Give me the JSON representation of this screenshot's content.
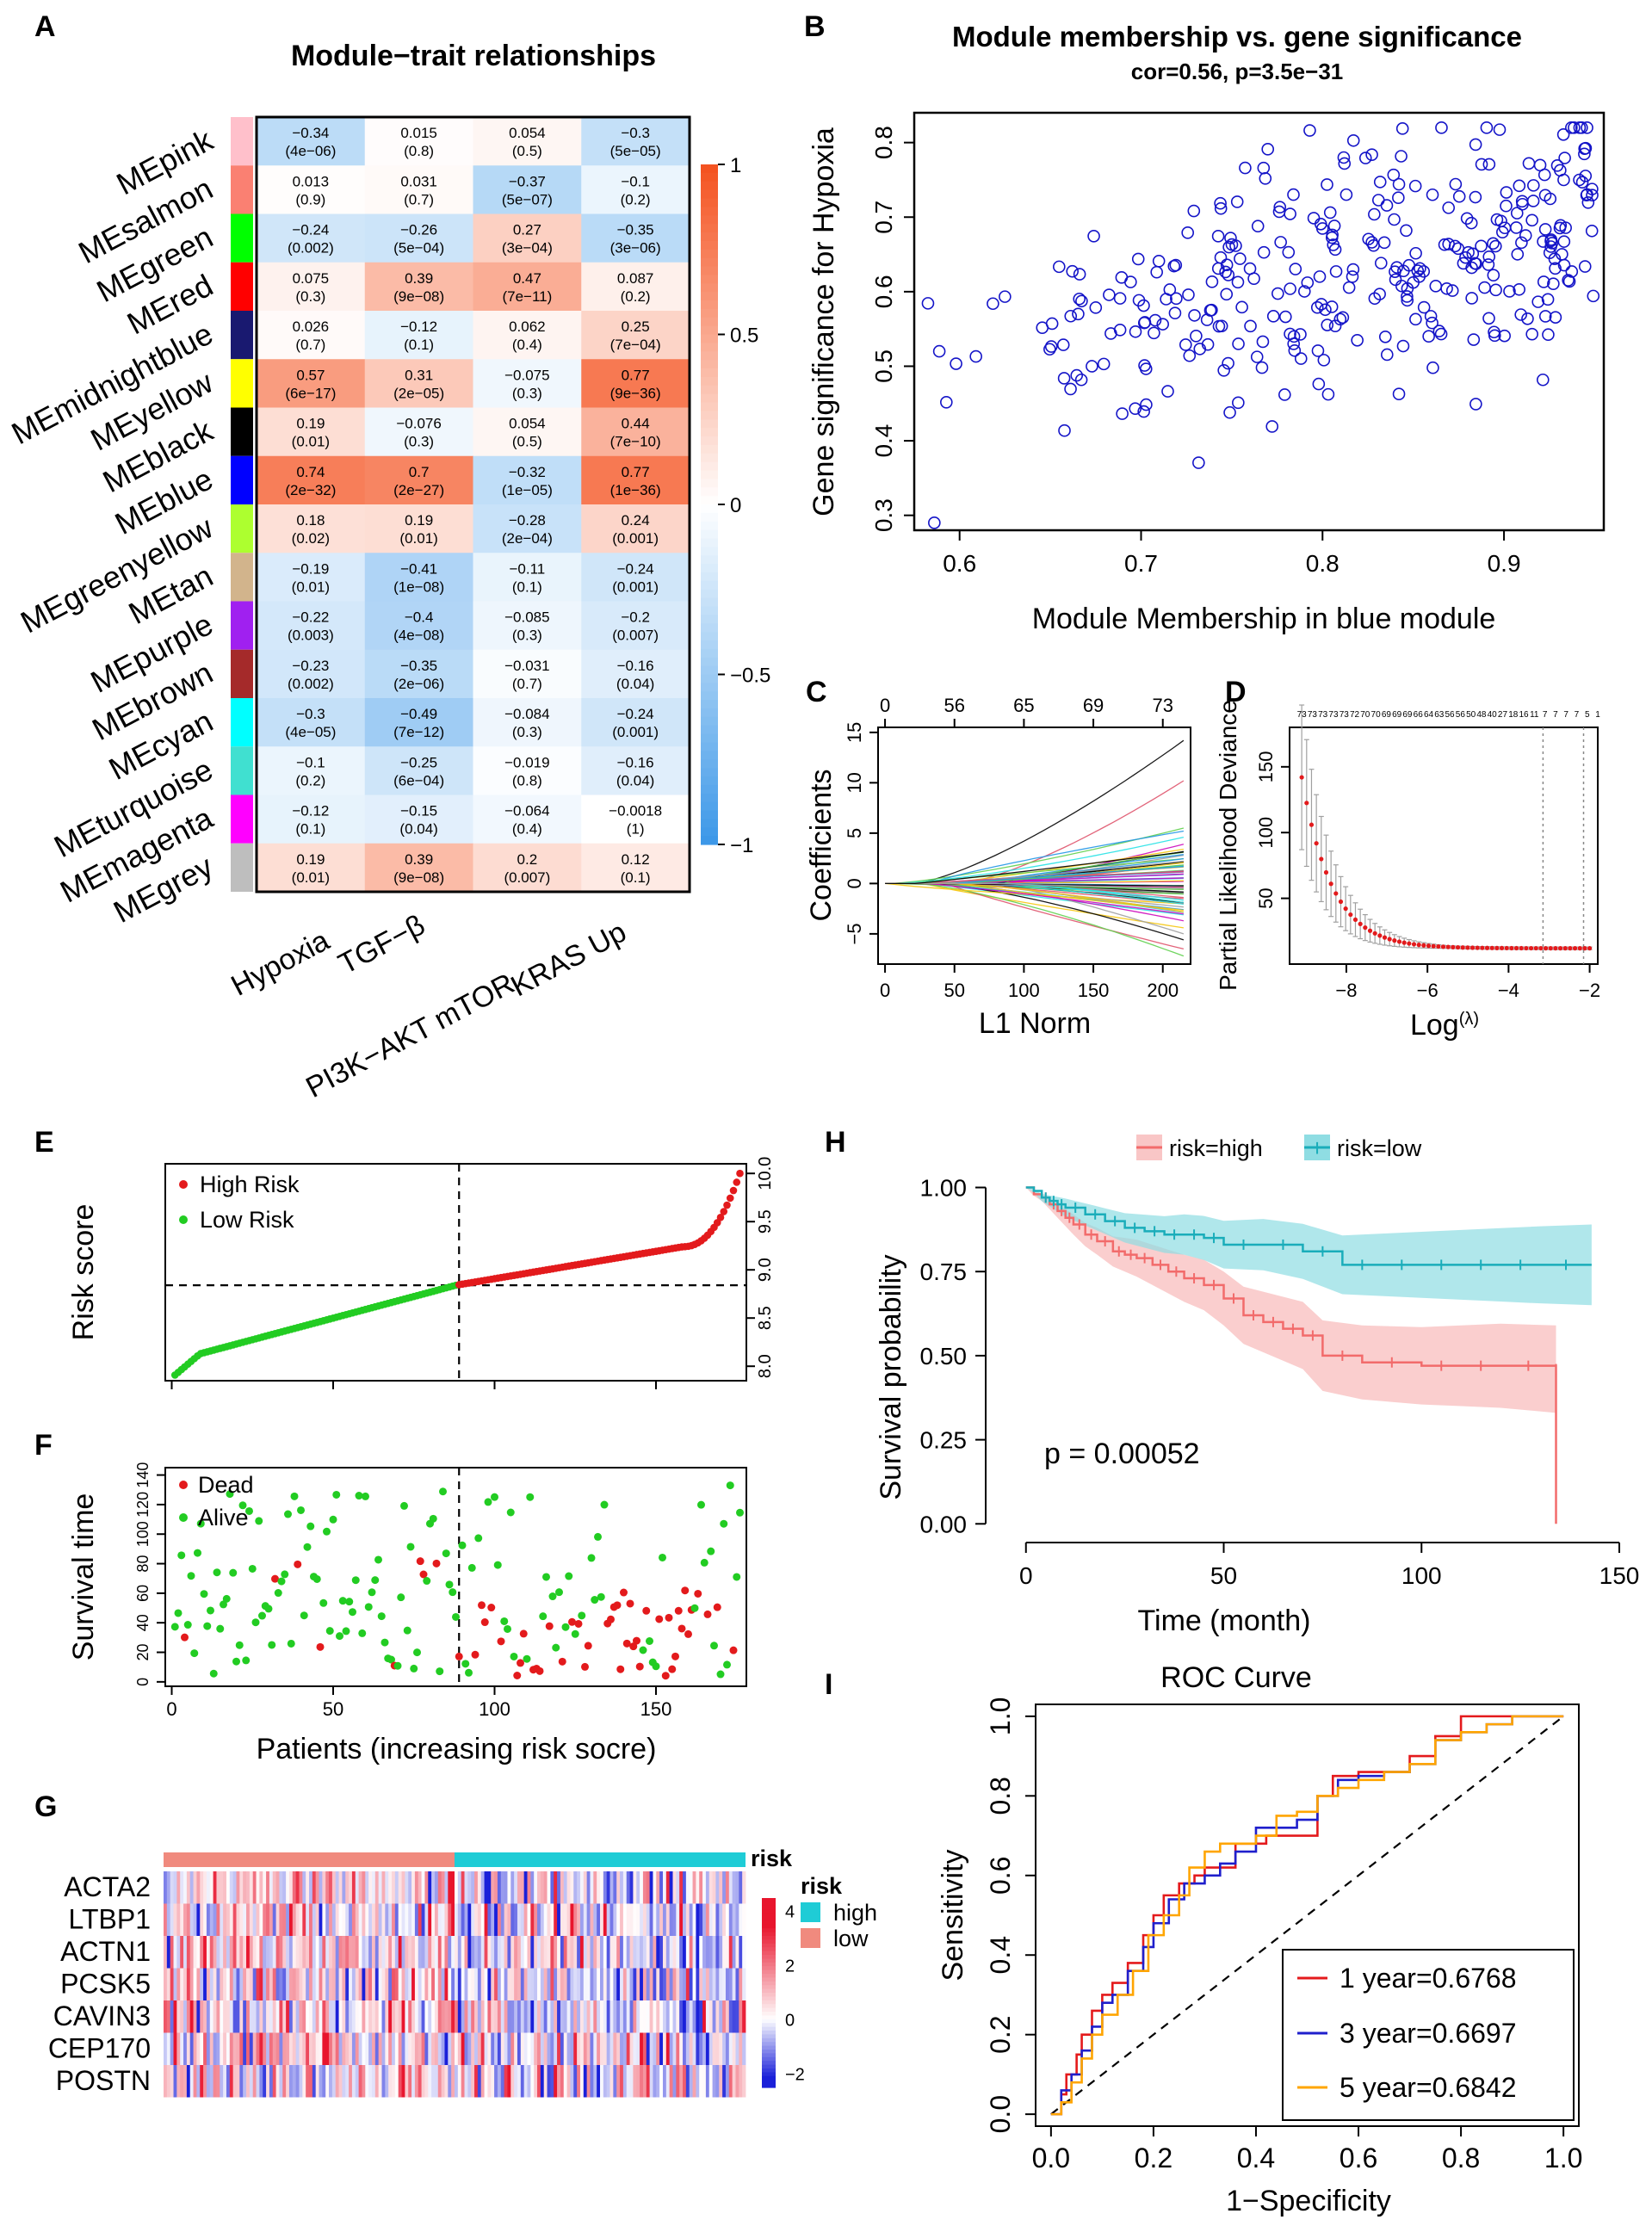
{
  "panel_letters": {
    "A": "A",
    "B": "B",
    "C": "C",
    "D": "D",
    "E": "E",
    "F": "F",
    "G": "G",
    "H": "H",
    "I": "I"
  },
  "chart_data": [
    {
      "id": "A",
      "type": "heatmap",
      "title": "Module−trait relationships",
      "rows": [
        "MEpink",
        "MEsalmon",
        "MEgreen",
        "MEred",
        "MEmidnightblue",
        "MEyellow",
        "MEblack",
        "MEblue",
        "MEgreenyellow",
        "MEtan",
        "MEpurple",
        "MEbrown",
        "MEcyan",
        "MEturquoise",
        "MEmagenta",
        "MEgrey"
      ],
      "row_colors": [
        "#FFC0CB",
        "#FA8072",
        "#00FF00",
        "#FF0000",
        "#191970",
        "#FFFF00",
        "#000000",
        "#0000FF",
        "#ADFF2F",
        "#D2B48C",
        "#A020F0",
        "#A52A2A",
        "#00FFFF",
        "#40E0D0",
        "#FF00FF",
        "#BEBEBE"
      ],
      "columns": [
        "Hypoxia",
        "TGF−β",
        "PI3K−AKT mTOR",
        "KRAS Up"
      ],
      "cor": [
        [
          "−0.34",
          "0.015",
          "0.054",
          "−0.3"
        ],
        [
          "0.013",
          "0.031",
          "−0.37",
          "−0.1"
        ],
        [
          "−0.24",
          "−0.26",
          "0.27",
          "−0.35"
        ],
        [
          "0.075",
          "0.39",
          "0.47",
          "0.087"
        ],
        [
          "0.026",
          "−0.12",
          "0.062",
          "0.25"
        ],
        [
          "0.57",
          "0.31",
          "−0.075",
          "0.77"
        ],
        [
          "0.19",
          "−0.076",
          "0.054",
          "0.44"
        ],
        [
          "0.74",
          "0.7",
          "−0.32",
          "0.77"
        ],
        [
          "0.18",
          "0.19",
          "−0.28",
          "0.24"
        ],
        [
          "−0.19",
          "−0.41",
          "−0.11",
          "−0.24"
        ],
        [
          "−0.22",
          "−0.4",
          "−0.085",
          "−0.2"
        ],
        [
          "−0.23",
          "−0.35",
          "−0.031",
          "−0.16"
        ],
        [
          "−0.3",
          "−0.49",
          "−0.084",
          "−0.24"
        ],
        [
          "−0.1",
          "−0.25",
          "−0.019",
          "−0.16"
        ],
        [
          "−0.12",
          "−0.15",
          "−0.064",
          "−0.0018"
        ],
        [
          "0.19",
          "0.39",
          "0.2",
          "0.12"
        ]
      ],
      "pvals": [
        [
          "(4e−06)",
          "(0.8)",
          "(0.5)",
          "(5e−05)"
        ],
        [
          "(0.9)",
          "(0.7)",
          "(5e−07)",
          "(0.2)"
        ],
        [
          "(0.002)",
          "(5e−04)",
          "(3e−04)",
          "(3e−06)"
        ],
        [
          "(0.3)",
          "(9e−08)",
          "(7e−11)",
          "(0.2)"
        ],
        [
          "(0.7)",
          "(0.1)",
          "(0.4)",
          "(7e−04)"
        ],
        [
          "(6e−17)",
          "(2e−05)",
          "(0.3)",
          "(9e−36)"
        ],
        [
          "(0.01)",
          "(0.3)",
          "(0.5)",
          "(7e−10)"
        ],
        [
          "(2e−32)",
          "(2e−27)",
          "(1e−05)",
          "(1e−36)"
        ],
        [
          "(0.02)",
          "(0.01)",
          "(2e−04)",
          "(0.001)"
        ],
        [
          "(0.01)",
          "(1e−08)",
          "(0.1)",
          "(0.001)"
        ],
        [
          "(0.003)",
          "(4e−08)",
          "(0.3)",
          "(0.007)"
        ],
        [
          "(0.002)",
          "(2e−06)",
          "(0.7)",
          "(0.04)"
        ],
        [
          "(4e−05)",
          "(7e−12)",
          "(0.3)",
          "(0.001)"
        ],
        [
          "(0.2)",
          "(6e−04)",
          "(0.8)",
          "(0.04)"
        ],
        [
          "(0.1)",
          "(0.04)",
          "(0.4)",
          "(1)"
        ],
        [
          "(0.01)",
          "(9e−08)",
          "(0.007)",
          "(0.1)"
        ]
      ],
      "colorbar_ticks": [
        "1",
        "0.5",
        "0",
        "−0.5",
        "−1"
      ],
      "colors": {
        "high": "#F4511E",
        "mid": "#FFFFFF",
        "low": "#3B97E8"
      }
    },
    {
      "id": "B",
      "type": "scatter",
      "title": "Module membership vs. gene significance",
      "subtitle": "cor=0.56, p=3.5e−31",
      "xlabel": "Module Membership in blue module",
      "ylabel": "Gene significance for Hypoxia",
      "xlim": [
        0.575,
        0.955
      ],
      "ylim": [
        0.28,
        0.84
      ],
      "xticks": [
        "0.6",
        "0.7",
        "0.8",
        "0.9"
      ],
      "yticks": [
        "0.3",
        "0.4",
        "0.5",
        "0.6",
        "0.7",
        "0.8"
      ],
      "n_points": 330,
      "trend": "positive, cor=0.56",
      "color": "#1414C8"
    },
    {
      "id": "C",
      "type": "line",
      "ylabel": "Coefficients",
      "xlabel": "L1 Norm",
      "xlim": [
        -5,
        220
      ],
      "ylim": [
        -8,
        15.5
      ],
      "xticks": [
        "0",
        "50",
        "100",
        "150",
        "200"
      ],
      "yticks": [
        "−5",
        "0",
        "5",
        "10",
        "15"
      ],
      "top_ticks": [
        "0",
        "56",
        "65",
        "69",
        "73"
      ],
      "top_tick_x": [
        0,
        50,
        100,
        150,
        200
      ],
      "n_series": 73
    },
    {
      "id": "D",
      "type": "line",
      "ylabel": "Partial Likelihood Deviance",
      "xlabel": "Log(λ)",
      "xlabel_main": "Log",
      "xlabel_sup": "(λ)",
      "xlim": [
        -9.4,
        -1.8
      ],
      "ylim": [
        0,
        180
      ],
      "xticks": [
        "−8",
        "−6",
        "−4",
        "−2"
      ],
      "yticks": [
        "50",
        "100",
        "150"
      ],
      "top_labels": [
        "73",
        "73",
        "73",
        "73",
        "73",
        "72",
        "70",
        "70",
        "69",
        "69",
        "69",
        "66",
        "64",
        "63",
        "56",
        "56",
        "50",
        "48",
        "40",
        "27",
        "18",
        "16",
        "11",
        "7",
        "7",
        "7",
        "7",
        "5",
        "1"
      ],
      "lambda_min": -3.15,
      "lambda_1se": -2.15
    },
    {
      "id": "E",
      "type": "scatter",
      "ylabel": "Risk score",
      "xlim": [
        -2,
        178
      ],
      "ylim": [
        7.85,
        10.1
      ],
      "yticks": [
        "8.0",
        "8.5",
        "9.0",
        "9.5",
        "10.0"
      ],
      "cutoff_x": 89,
      "cutoff_y": 8.84,
      "n_patients": 176,
      "legend": [
        "High Risk",
        "Low  Risk"
      ],
      "colors": {
        "high": "#E31A1C",
        "low": "#22CC22"
      }
    },
    {
      "id": "F",
      "type": "scatter",
      "ylabel": "Survival time",
      "xlabel": "Patients (increasing risk socre)",
      "xlim": [
        -2,
        178
      ],
      "ylim": [
        -3,
        145
      ],
      "xticks": [
        "0",
        "50",
        "100",
        "150"
      ],
      "yticks": [
        "0",
        "20",
        "40",
        "60",
        "80",
        "100",
        "120",
        "140"
      ],
      "cutoff_x": 89,
      "legend": [
        "Dead",
        "Alive"
      ],
      "colors": {
        "dead": "#E31A1C",
        "alive": "#22CC22"
      }
    },
    {
      "id": "G",
      "type": "heatmap",
      "genes": [
        "ACTA2",
        "LTBP1",
        "ACTN1",
        "PCSK5",
        "CAVIN3",
        "CEP170",
        "POSTN"
      ],
      "annotation_label": "risk",
      "legend_title": "risk",
      "legend_items": [
        "high",
        "low"
      ],
      "legend_colors": [
        "#1FCCD6",
        "#F08A7E"
      ],
      "scale_ticks": [
        "4",
        "2",
        "0",
        "−2"
      ],
      "n_columns": 176,
      "n_high": 88
    },
    {
      "id": "H",
      "type": "line",
      "xlabel": "Time (month)",
      "ylabel": "Survival probability",
      "xlim": [
        -8,
        155
      ],
      "ylim": [
        -0.03,
        1.05
      ],
      "xticks": [
        "0",
        "50",
        "100",
        "150"
      ],
      "yticks": [
        "0.00",
        "0.25",
        "0.50",
        "0.75",
        "1.00"
      ],
      "legend": [
        "risk=high",
        "risk=low"
      ],
      "annotation": "p = 0.00052",
      "colors": {
        "high": "#F26B6B",
        "low": "#1AADBA"
      },
      "series": [
        {
          "name": "risk=high",
          "x": [
            0,
            2,
            4,
            6,
            8,
            10,
            12,
            15,
            18,
            22,
            25,
            28,
            32,
            36,
            40,
            45,
            50,
            55,
            60,
            65,
            70,
            75,
            85,
            100,
            110,
            120,
            134,
            134
          ],
          "y": [
            1.0,
            0.98,
            0.97,
            0.95,
            0.93,
            0.91,
            0.89,
            0.86,
            0.84,
            0.81,
            0.8,
            0.79,
            0.77,
            0.75,
            0.73,
            0.71,
            0.67,
            0.62,
            0.6,
            0.58,
            0.56,
            0.5,
            0.48,
            0.47,
            0.47,
            0.47,
            0.46,
            0.0
          ]
        },
        {
          "name": "risk=low",
          "x": [
            0,
            2,
            4,
            6,
            8,
            10,
            15,
            20,
            25,
            30,
            35,
            40,
            45,
            50,
            60,
            70,
            80,
            90,
            100,
            110,
            120,
            130,
            143
          ],
          "y": [
            1.0,
            0.99,
            0.97,
            0.96,
            0.95,
            0.94,
            0.92,
            0.9,
            0.88,
            0.87,
            0.86,
            0.86,
            0.85,
            0.83,
            0.83,
            0.81,
            0.77,
            0.77,
            0.77,
            0.77,
            0.77,
            0.77,
            0.77
          ]
        }
      ]
    },
    {
      "id": "I",
      "type": "line",
      "title": "ROC Curve",
      "xlabel": "1−Specificity",
      "ylabel": "Sensitivity",
      "xlim": [
        -0.03,
        1.03
      ],
      "ylim": [
        -0.03,
        1.03
      ],
      "xticks": [
        "0.0",
        "0.2",
        "0.4",
        "0.6",
        "0.8",
        "1.0"
      ],
      "yticks": [
        "0.0",
        "0.2",
        "0.4",
        "0.6",
        "0.8",
        "1.0"
      ],
      "legend": [
        "1 year=0.6768",
        "3 year=0.6697",
        "5 year=0.6842"
      ],
      "colors": [
        "#E41A1C",
        "#1F1FCC",
        "#FFA500"
      ],
      "series": [
        {
          "name": "1 year=0.6768",
          "x": [
            0,
            0.02,
            0.03,
            0.05,
            0.06,
            0.08,
            0.1,
            0.12,
            0.15,
            0.18,
            0.2,
            0.22,
            0.25,
            0.28,
            0.3,
            0.33,
            0.36,
            0.38,
            0.42,
            0.46,
            0.5,
            0.52,
            0.55,
            0.6,
            0.65,
            0.7,
            0.75,
            0.78,
            0.8,
            0.85,
            0.9,
            1.0
          ],
          "y": [
            0,
            0.05,
            0.1,
            0.15,
            0.2,
            0.26,
            0.3,
            0.33,
            0.38,
            0.45,
            0.5,
            0.55,
            0.58,
            0.6,
            0.62,
            0.62,
            0.68,
            0.68,
            0.7,
            0.7,
            0.7,
            0.8,
            0.85,
            0.86,
            0.86,
            0.9,
            0.95,
            0.95,
            1.0,
            1.0,
            1.0,
            1.0
          ]
        },
        {
          "name": "3 year=0.6697",
          "x": [
            0,
            0.02,
            0.04,
            0.06,
            0.08,
            0.1,
            0.12,
            0.15,
            0.18,
            0.2,
            0.23,
            0.26,
            0.3,
            0.33,
            0.36,
            0.4,
            0.44,
            0.48,
            0.52,
            0.56,
            0.6,
            0.65,
            0.7,
            0.75,
            0.8,
            0.85,
            0.9,
            1.0
          ],
          "y": [
            0,
            0.06,
            0.1,
            0.16,
            0.22,
            0.28,
            0.3,
            0.36,
            0.42,
            0.48,
            0.54,
            0.58,
            0.6,
            0.63,
            0.66,
            0.72,
            0.72,
            0.74,
            0.8,
            0.84,
            0.85,
            0.86,
            0.88,
            0.94,
            0.96,
            0.98,
            1.0,
            1.0
          ]
        },
        {
          "name": "5 year=0.6842",
          "x": [
            0,
            0.02,
            0.04,
            0.06,
            0.08,
            0.1,
            0.13,
            0.16,
            0.19,
            0.22,
            0.25,
            0.27,
            0.3,
            0.33,
            0.36,
            0.4,
            0.44,
            0.48,
            0.52,
            0.56,
            0.6,
            0.65,
            0.7,
            0.75,
            0.8,
            0.85,
            0.9,
            1.0
          ],
          "y": [
            0,
            0.03,
            0.08,
            0.14,
            0.2,
            0.25,
            0.3,
            0.36,
            0.45,
            0.5,
            0.55,
            0.62,
            0.66,
            0.68,
            0.68,
            0.7,
            0.75,
            0.76,
            0.8,
            0.82,
            0.84,
            0.86,
            0.88,
            0.94,
            0.96,
            0.98,
            1.0,
            1.0
          ]
        }
      ]
    }
  ]
}
